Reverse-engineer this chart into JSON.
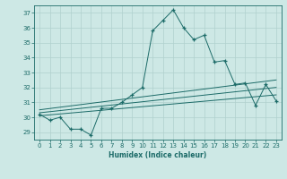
{
  "xlabel": "Humidex (Indice chaleur)",
  "ylabel": "",
  "bg_color": "#cde8e5",
  "grid_color": "#b0d0cd",
  "line_color": "#1c6b68",
  "xlim": [
    -0.5,
    23.5
  ],
  "ylim": [
    28.5,
    37.5
  ],
  "xticks": [
    0,
    1,
    2,
    3,
    4,
    5,
    6,
    7,
    8,
    9,
    10,
    11,
    12,
    13,
    14,
    15,
    16,
    17,
    18,
    19,
    20,
    21,
    22,
    23
  ],
  "yticks": [
    29,
    30,
    31,
    32,
    33,
    34,
    35,
    36,
    37
  ],
  "series_main": {
    "x": [
      0,
      1,
      2,
      3,
      4,
      5,
      6,
      7,
      8,
      9,
      10,
      11,
      12,
      13,
      14,
      15,
      16,
      17,
      18,
      19,
      20,
      21,
      22,
      23
    ],
    "y": [
      30.2,
      29.8,
      30.0,
      29.2,
      29.2,
      28.8,
      30.6,
      30.6,
      31.0,
      31.5,
      32.0,
      35.8,
      36.5,
      37.2,
      36.0,
      35.2,
      35.5,
      33.7,
      33.8,
      32.2,
      32.3,
      30.8,
      32.2,
      31.1
    ]
  },
  "trend_lines": [
    {
      "x": [
        0,
        23
      ],
      "y": [
        30.1,
        31.5
      ]
    },
    {
      "x": [
        0,
        23
      ],
      "y": [
        30.3,
        32.0
      ]
    },
    {
      "x": [
        0,
        23
      ],
      "y": [
        30.5,
        32.5
      ]
    }
  ]
}
